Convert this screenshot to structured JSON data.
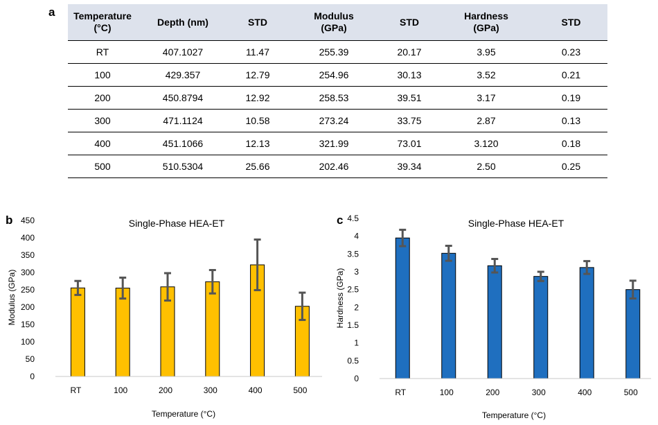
{
  "panels": {
    "a": "a",
    "b": "b",
    "c": "c"
  },
  "table": {
    "headers": [
      [
        "Temperature",
        "(°C)"
      ],
      [
        "Depth (nm)"
      ],
      [
        "STD"
      ],
      [
        "Modulus",
        "(GPa)"
      ],
      [
        "STD"
      ],
      [
        "Hardness",
        "(GPa)"
      ],
      [
        "STD"
      ]
    ],
    "rows": [
      [
        "RT",
        "407.1027",
        "11.47",
        "255.39",
        "20.17",
        "3.95",
        "0.23"
      ],
      [
        "100",
        "429.357",
        "12.79",
        "254.96",
        "30.13",
        "3.52",
        "0.21"
      ],
      [
        "200",
        "450.8794",
        "12.92",
        "258.53",
        "39.51",
        "3.17",
        "0.19"
      ],
      [
        "300",
        "471.1124",
        "10.58",
        "273.24",
        "33.75",
        "2.87",
        "0.13"
      ],
      [
        "400",
        "451.1066",
        "12.13",
        "321.99",
        "73.01",
        "3.120",
        "0.18"
      ],
      [
        "500",
        "510.5304",
        "25.66",
        "202.46",
        "39.34",
        "2.50",
        "0.25"
      ]
    ]
  },
  "chart_data": [
    {
      "type": "bar",
      "title": "Single-Phase HEA-ET",
      "xlabel": "Temperature (°C)",
      "ylabel": "Modulus (GPa)",
      "categories": [
        "RT",
        "100",
        "200",
        "300",
        "400",
        "500"
      ],
      "values": [
        255.39,
        254.96,
        258.53,
        273.24,
        321.99,
        202.46
      ],
      "errors": [
        20.17,
        30.13,
        39.51,
        33.75,
        73.01,
        39.34
      ],
      "ylim": [
        0,
        450
      ],
      "yticks": [
        "0",
        "50",
        "100",
        "150",
        "200",
        "250",
        "300",
        "350",
        "400",
        "450"
      ],
      "grid": false,
      "bar_color": "#ffc000"
    },
    {
      "type": "bar",
      "title": "Single-Phase HEA-ET",
      "xlabel": "Temperature (°C)",
      "ylabel": "Hardness (GPa)",
      "categories": [
        "RT",
        "100",
        "200",
        "300",
        "400",
        "500"
      ],
      "values": [
        3.95,
        3.52,
        3.17,
        2.87,
        3.12,
        2.5
      ],
      "errors": [
        0.23,
        0.21,
        0.19,
        0.13,
        0.18,
        0.25
      ],
      "ylim": [
        0,
        4.5
      ],
      "yticks": [
        "0",
        "0.5",
        "1",
        "1.5",
        "2",
        "2.5",
        "3",
        "3.5",
        "4",
        "4.5"
      ],
      "grid": false,
      "bar_color": "#1f6fbf"
    }
  ]
}
